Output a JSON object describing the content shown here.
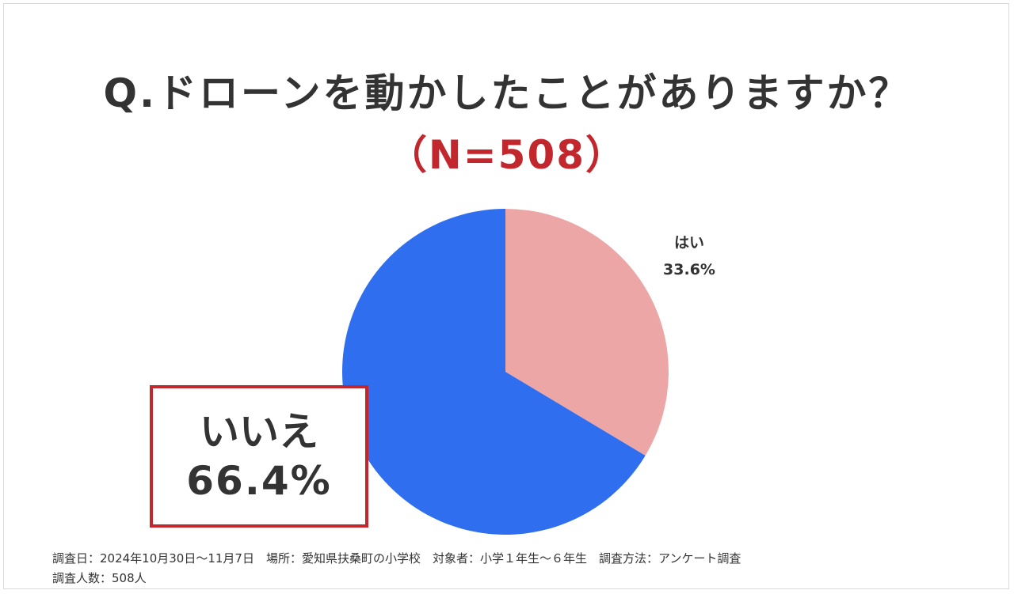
{
  "header": {
    "title": "Q.ドローンを動かしたことがありますか？",
    "sample": "（N=508）"
  },
  "chart_data": {
    "type": "pie",
    "title": "Q.ドローンを動かしたことがありますか？",
    "subtitle": "（N=508）",
    "categories": [
      "はい",
      "いいえ"
    ],
    "values": [
      33.6,
      66.4
    ],
    "value_labels": [
      "33.6%",
      "66.4%"
    ],
    "colors": [
      "#eda6a6",
      "#2f6fef"
    ],
    "start": "top",
    "direction": "clockwise"
  },
  "labels": {
    "yes_category": "はい",
    "yes_value": "33.6%",
    "no_category": "いいえ",
    "no_value": "66.4%"
  },
  "footnote": {
    "line1": "調査日：2024年10月30日～11月7日　場所：愛知県扶桑町の小学校　対象者：小学１年生～６年生　調査方法：アンケート調査",
    "line2": "調査人数：508人"
  },
  "colors": {
    "accent": "#c1272d",
    "text": "#333333"
  }
}
